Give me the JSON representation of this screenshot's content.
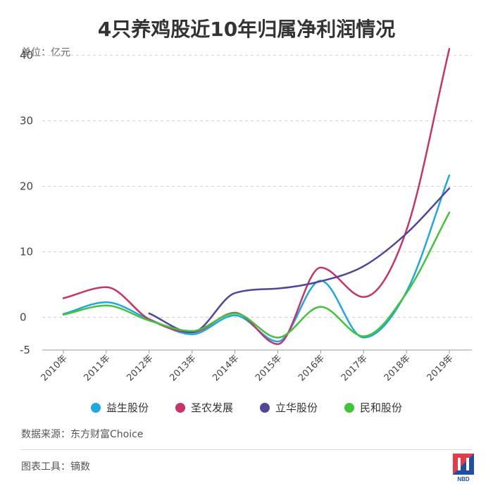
{
  "title": "4只养鸡股近10年归属净利润情况",
  "unit_label": "单位：亿元",
  "source": "数据来源：东方财富Choice",
  "tool": "图表工具：镝数",
  "logo_text": "NBD",
  "chart_data": {
    "type": "line",
    "title": "4只养鸡股近10年归属净利润情况",
    "ylabel": "单位：亿元",
    "xlabel": "",
    "x": [
      "2010年",
      "2011年",
      "2012年",
      "2013年",
      "2014年",
      "2015年",
      "2016年",
      "2017年",
      "2018年",
      "2019年"
    ],
    "yticks": [
      -5,
      0,
      10,
      20,
      30,
      40
    ],
    "ylim": [
      -5,
      42
    ],
    "grid": true,
    "legend_position": "bottom",
    "series": [
      {
        "name": "益生股份",
        "color": "#1fa8e0",
        "values": [
          0.5,
          2.3,
          -0.3,
          -2.6,
          0.3,
          -3.7,
          5.6,
          -3.1,
          3.9,
          21.7
        ]
      },
      {
        "name": "圣农发展",
        "color": "#c8336a",
        "values": [
          2.9,
          4.6,
          -0.3,
          -2.3,
          0.7,
          -4.1,
          7.6,
          3.1,
          13.3,
          41.0
        ]
      },
      {
        "name": "立华股份",
        "color": "#52469b",
        "values": [
          null,
          null,
          0.6,
          -2.3,
          3.7,
          4.4,
          5.5,
          7.8,
          12.8,
          19.7
        ]
      },
      {
        "name": "民和股份",
        "color": "#41c43a",
        "values": [
          0.4,
          1.8,
          -0.5,
          -2.1,
          0.6,
          -3.1,
          1.6,
          -2.9,
          3.7,
          16.0
        ]
      }
    ]
  }
}
